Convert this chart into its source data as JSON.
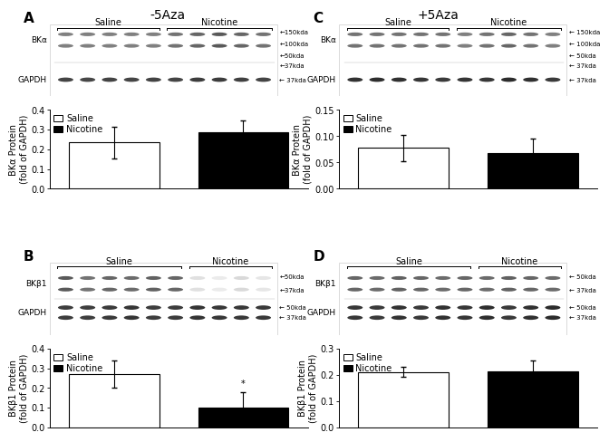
{
  "title_left": "-5Aza",
  "title_right": "+5Aza",
  "panel_labels": [
    "A",
    "B",
    "C",
    "D"
  ],
  "bar_data": {
    "A": {
      "saline_val": 0.235,
      "nicotine_val": 0.285,
      "saline_err": 0.08,
      "nicotine_err": 0.06,
      "ylabel": "BKα Protein\n(fold of GAPDH)",
      "ylim": [
        0.0,
        0.4
      ],
      "yticks": [
        0.0,
        0.1,
        0.2,
        0.3,
        0.4
      ],
      "sig": false
    },
    "B": {
      "saline_val": 0.27,
      "nicotine_val": 0.103,
      "saline_err": 0.07,
      "nicotine_err": 0.075,
      "ylabel": "BKβ1 Protein\n(fold of GAPDH)",
      "ylim": [
        0.0,
        0.4
      ],
      "yticks": [
        0.0,
        0.1,
        0.2,
        0.3,
        0.4
      ],
      "sig": true
    },
    "C": {
      "saline_val": 0.078,
      "nicotine_val": 0.068,
      "saline_err": 0.025,
      "nicotine_err": 0.028,
      "ylabel": "BKα Protein\n(fold of GAPDH)",
      "ylim": [
        0.0,
        0.15
      ],
      "yticks": [
        0.0,
        0.05,
        0.1,
        0.15
      ],
      "sig": false
    },
    "D": {
      "saline_val": 0.211,
      "nicotine_val": 0.213,
      "saline_err": 0.018,
      "nicotine_err": 0.04,
      "ylabel": "BKβ1 Protein\n(fold of GAPDH)",
      "ylim": [
        0.0,
        0.3
      ],
      "yticks": [
        0.0,
        0.1,
        0.2,
        0.3
      ],
      "sig": false
    }
  },
  "blot_info": {
    "A": {
      "protein_label": "BKα",
      "gapdh_label": "GAPDH",
      "protein_markers": [
        [
          "←150kda",
          0.88
        ],
        [
          "←100kda",
          0.72
        ],
        [
          "←50kda",
          0.56
        ],
        [
          "←37kda",
          0.42
        ]
      ],
      "gapdh_markers": [
        [
          "← 37kda",
          0.22
        ]
      ],
      "protein_rows": [
        0.86,
        0.7
      ],
      "gapdh_rows": [
        0.23
      ],
      "n_saline": 5,
      "n_nicotine": 5,
      "protein_intensity_saline": [
        0.5,
        0.5,
        0.5,
        0.5,
        0.5
      ],
      "protein_intensity_nicotine": [
        0.55,
        0.6,
        0.65,
        0.6,
        0.55
      ],
      "gapdh_intensity": 0.75
    },
    "B": {
      "protein_label": "BKβ1",
      "gapdh_label": "GAPDH",
      "protein_markers": [
        [
          "←50kda",
          0.8
        ],
        [
          "←37kda",
          0.62
        ]
      ],
      "gapdh_markers": [
        [
          "← 50kda",
          0.38
        ],
        [
          "← 37kda",
          0.24
        ]
      ],
      "protein_rows": [
        0.79,
        0.63
      ],
      "gapdh_rows": [
        0.38,
        0.24
      ],
      "n_saline": 6,
      "n_nicotine": 4,
      "protein_intensity_saline": [
        0.65,
        0.55,
        0.6,
        0.58,
        0.62,
        0.6
      ],
      "protein_intensity_nicotine": [
        0.12,
        0.08,
        0.15,
        0.1
      ],
      "gapdh_intensity": 0.78
    },
    "C": {
      "protein_label": "BKα",
      "gapdh_label": "GAPDH",
      "protein_markers": [
        [
          "← 150kda",
          0.88
        ],
        [
          "← 100kda",
          0.72
        ],
        [
          "← 50kda",
          0.56
        ],
        [
          "← 37kda",
          0.42
        ]
      ],
      "gapdh_markers": [
        [
          "← 37kda",
          0.22
        ]
      ],
      "protein_rows": [
        0.86,
        0.7
      ],
      "gapdh_rows": [
        0.23
      ],
      "n_saline": 5,
      "n_nicotine": 5,
      "protein_intensity_saline": [
        0.55,
        0.55,
        0.55,
        0.55,
        0.55
      ],
      "protein_intensity_nicotine": [
        0.5,
        0.55,
        0.6,
        0.55,
        0.5
      ],
      "gapdh_intensity": 0.8
    },
    "D": {
      "protein_label": "BKβ1",
      "gapdh_label": "GAPDH",
      "protein_markers": [
        [
          "← 50kda",
          0.8
        ],
        [
          "← 37kda",
          0.62
        ]
      ],
      "gapdh_markers": [
        [
          "← 50kda",
          0.38
        ],
        [
          "← 37kda",
          0.24
        ]
      ],
      "protein_rows": [
        0.79,
        0.63
      ],
      "gapdh_rows": [
        0.38,
        0.24
      ],
      "n_saline": 6,
      "n_nicotine": 4,
      "protein_intensity_saline": [
        0.6,
        0.58,
        0.62,
        0.6,
        0.58,
        0.6
      ],
      "protein_intensity_nicotine": [
        0.58,
        0.62,
        0.6,
        0.58
      ],
      "gapdh_intensity": 0.8
    }
  },
  "bar_colors": {
    "saline": "white",
    "nicotine": "black"
  },
  "bar_edge_color": "black",
  "background_color": "white",
  "font_size_title": 10,
  "font_size_label": 7,
  "font_size_tick": 7,
  "font_size_panel": 11,
  "legend_fontsize": 7
}
